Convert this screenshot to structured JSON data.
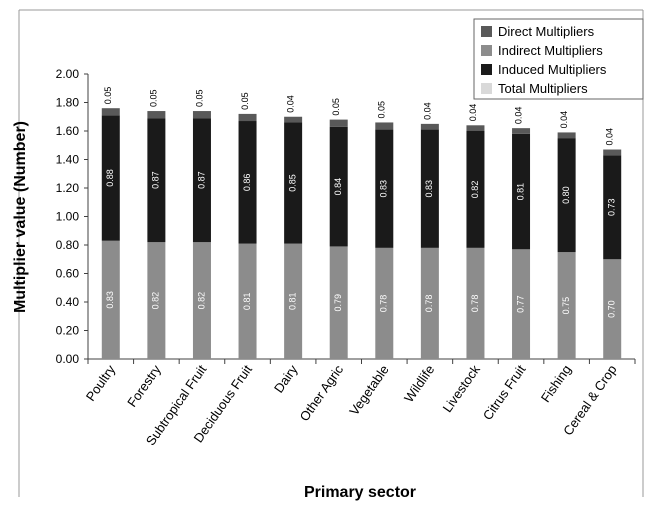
{
  "chart_data": {
    "type": "bar",
    "stacked": true,
    "title": "",
    "xlabel": "Primary sector",
    "ylabel": "Multiplier value (Number)",
    "ylim": [
      0,
      2.0
    ],
    "yticks": [
      "0.00",
      "0.20",
      "0.40",
      "0.60",
      "0.80",
      "1.00",
      "1.20",
      "1.40",
      "1.60",
      "1.80",
      "2.00"
    ],
    "grid": false,
    "legend_position": "top-right",
    "categories": [
      "Poultry",
      "Forestry",
      "Subtropical Fruit",
      "Deciduous Fruit",
      "Dairy",
      "Other Agric",
      "Vegetable",
      "Wildlife",
      "Livestock",
      "Citrus Fruit",
      "Fishing",
      "Cereal & Crop"
    ],
    "series": [
      {
        "name": "Indirect Multipliers",
        "color": "#8c8c8c",
        "values": [
          0.83,
          0.82,
          0.82,
          0.81,
          0.81,
          0.79,
          0.78,
          0.78,
          0.78,
          0.77,
          0.75,
          0.7
        ],
        "labels": [
          "0.83",
          "0.82",
          "0.82",
          "0.81",
          "0.81",
          "0.79",
          "0.78",
          "0.78",
          "0.78",
          "0.77",
          "0.75",
          "0.70"
        ]
      },
      {
        "name": "Induced Multipliers",
        "color": "#1a1a1a",
        "values": [
          0.88,
          0.87,
          0.87,
          0.86,
          0.85,
          0.84,
          0.83,
          0.83,
          0.82,
          0.81,
          0.8,
          0.73
        ],
        "labels": [
          "0.88",
          "0.87",
          "0.87",
          "0.86",
          "0.85",
          "0.84",
          "0.83",
          "0.83",
          "0.82",
          "0.81",
          "0.80",
          "0.73"
        ]
      },
      {
        "name": "Direct Multipliers",
        "color": "#595959",
        "values": [
          0.05,
          0.05,
          0.05,
          0.05,
          0.04,
          0.05,
          0.05,
          0.04,
          0.04,
          0.04,
          0.04,
          0.04
        ],
        "labels": [
          "0.05",
          "0.05",
          "0.05",
          "0.05",
          "0.04",
          "0.05",
          "0.05",
          "0.04",
          "0.04",
          "0.04",
          "0.04",
          "0.04"
        ]
      }
    ],
    "legend": [
      {
        "name": "Direct Multipliers",
        "color": "#595959"
      },
      {
        "name": "Indirect Multipliers",
        "color": "#8c8c8c"
      },
      {
        "name": "Induced Multipliers",
        "color": "#1a1a1a"
      },
      {
        "name": "Total Multipliers",
        "color": "#d9d9d9"
      }
    ]
  }
}
